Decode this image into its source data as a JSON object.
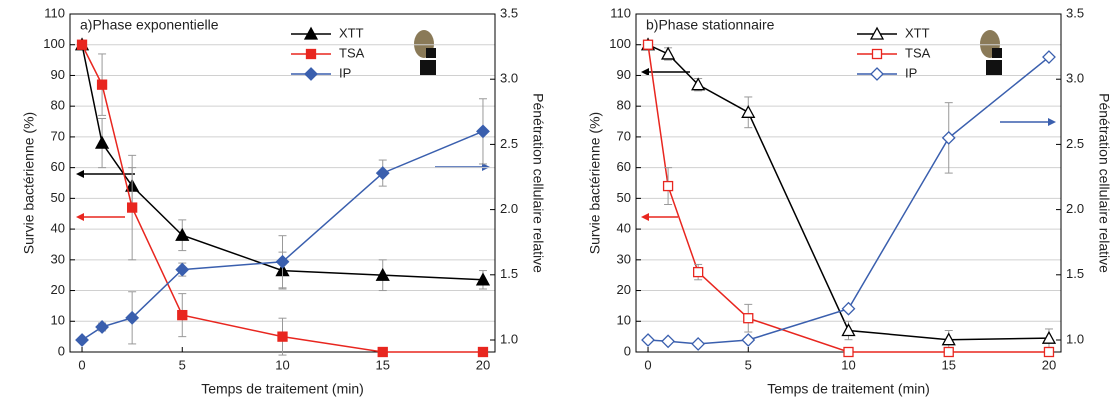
{
  "chart_data": [
    {
      "type": "line",
      "title": "a)Phase exponentielle",
      "x_label": "Temps de traitement (min)",
      "y_label": "Survie bactérienne (%)",
      "y2_label": "Pénétration cellulaire relative",
      "x": [
        0,
        1,
        2.5,
        5,
        10,
        15,
        20
      ],
      "xlim": [
        -0.6,
        20.6
      ],
      "xticks": [
        0,
        5,
        10,
        15,
        20
      ],
      "ylim": [
        0,
        110
      ],
      "yticks": [
        0,
        10,
        20,
        30,
        40,
        50,
        60,
        70,
        80,
        90,
        100,
        110
      ],
      "y2lim": [
        0.908,
        3.5
      ],
      "y2ticks": [
        {
          "value": 1,
          "label": "1.0"
        },
        1.5,
        {
          "value": 2,
          "label": "2.0"
        },
        2.5,
        {
          "value": 3,
          "label": "3.0"
        },
        3.5
      ],
      "grid": true,
      "filled_markers": true,
      "series": [
        {
          "name": "XTT",
          "color": "#000000",
          "marker": "triangle",
          "values": [
            100,
            68,
            54,
            38,
            26.5,
            25,
            23.5
          ],
          "errors": [
            0,
            8,
            6,
            5,
            6,
            5,
            3
          ]
        },
        {
          "name": "TSA",
          "color": "#e8261f",
          "marker": "square",
          "values": [
            100,
            87,
            47,
            12,
            5,
            0,
            0
          ],
          "errors": [
            0,
            10,
            17,
            7,
            6,
            0,
            0
          ]
        },
        {
          "name": "IP",
          "color": "#3a5fae",
          "marker": "diamond",
          "axis": "y2",
          "values": [
            1.0,
            1.1,
            1.17,
            1.54,
            1.6,
            2.28,
            2.6
          ],
          "errors": [
            0,
            0.03,
            0.2,
            0.05,
            0.2,
            0.1,
            0.25
          ]
        }
      ]
    },
    {
      "type": "line",
      "title": "b)Phase stationnaire",
      "x_label": "Temps de traitement (min)",
      "y_label": "Survie bactérienne (%)",
      "y2_label": "Pénétration cellulaire relative",
      "x": [
        0,
        1,
        2.5,
        5,
        10,
        15,
        20
      ],
      "xlim": [
        -0.6,
        20.6
      ],
      "xticks": [
        0,
        5,
        10,
        15,
        20
      ],
      "ylim": [
        0,
        110
      ],
      "yticks": [
        0,
        10,
        20,
        30,
        40,
        50,
        60,
        70,
        80,
        90,
        100,
        110
      ],
      "y2lim": [
        0.908,
        3.5
      ],
      "y2ticks": [
        {
          "value": 1,
          "label": "1.0"
        },
        1.5,
        {
          "value": 2,
          "label": "2.0"
        },
        2.5,
        {
          "value": 3,
          "label": "3.0"
        },
        3.5
      ],
      "grid": true,
      "filled_markers": false,
      "series": [
        {
          "name": "XTT",
          "color": "#000000",
          "marker": "triangle",
          "values": [
            100,
            97,
            87,
            78,
            7,
            4,
            4.5
          ],
          "errors": [
            0,
            2,
            2,
            5,
            3,
            3,
            3
          ]
        },
        {
          "name": "TSA",
          "color": "#e8261f",
          "marker": "square",
          "values": [
            100,
            54,
            26,
            11,
            0,
            0,
            0
          ],
          "errors": [
            0,
            6,
            2.5,
            4.5,
            0,
            0,
            0
          ]
        },
        {
          "name": "IP",
          "color": "#3a5fae",
          "marker": "diamond",
          "axis": "y2",
          "values": [
            1.0,
            0.99,
            0.97,
            1.0,
            1.24,
            2.55,
            3.17
          ],
          "errors": [
            0,
            0,
            0,
            0,
            0,
            0.27,
            0
          ]
        }
      ]
    }
  ]
}
